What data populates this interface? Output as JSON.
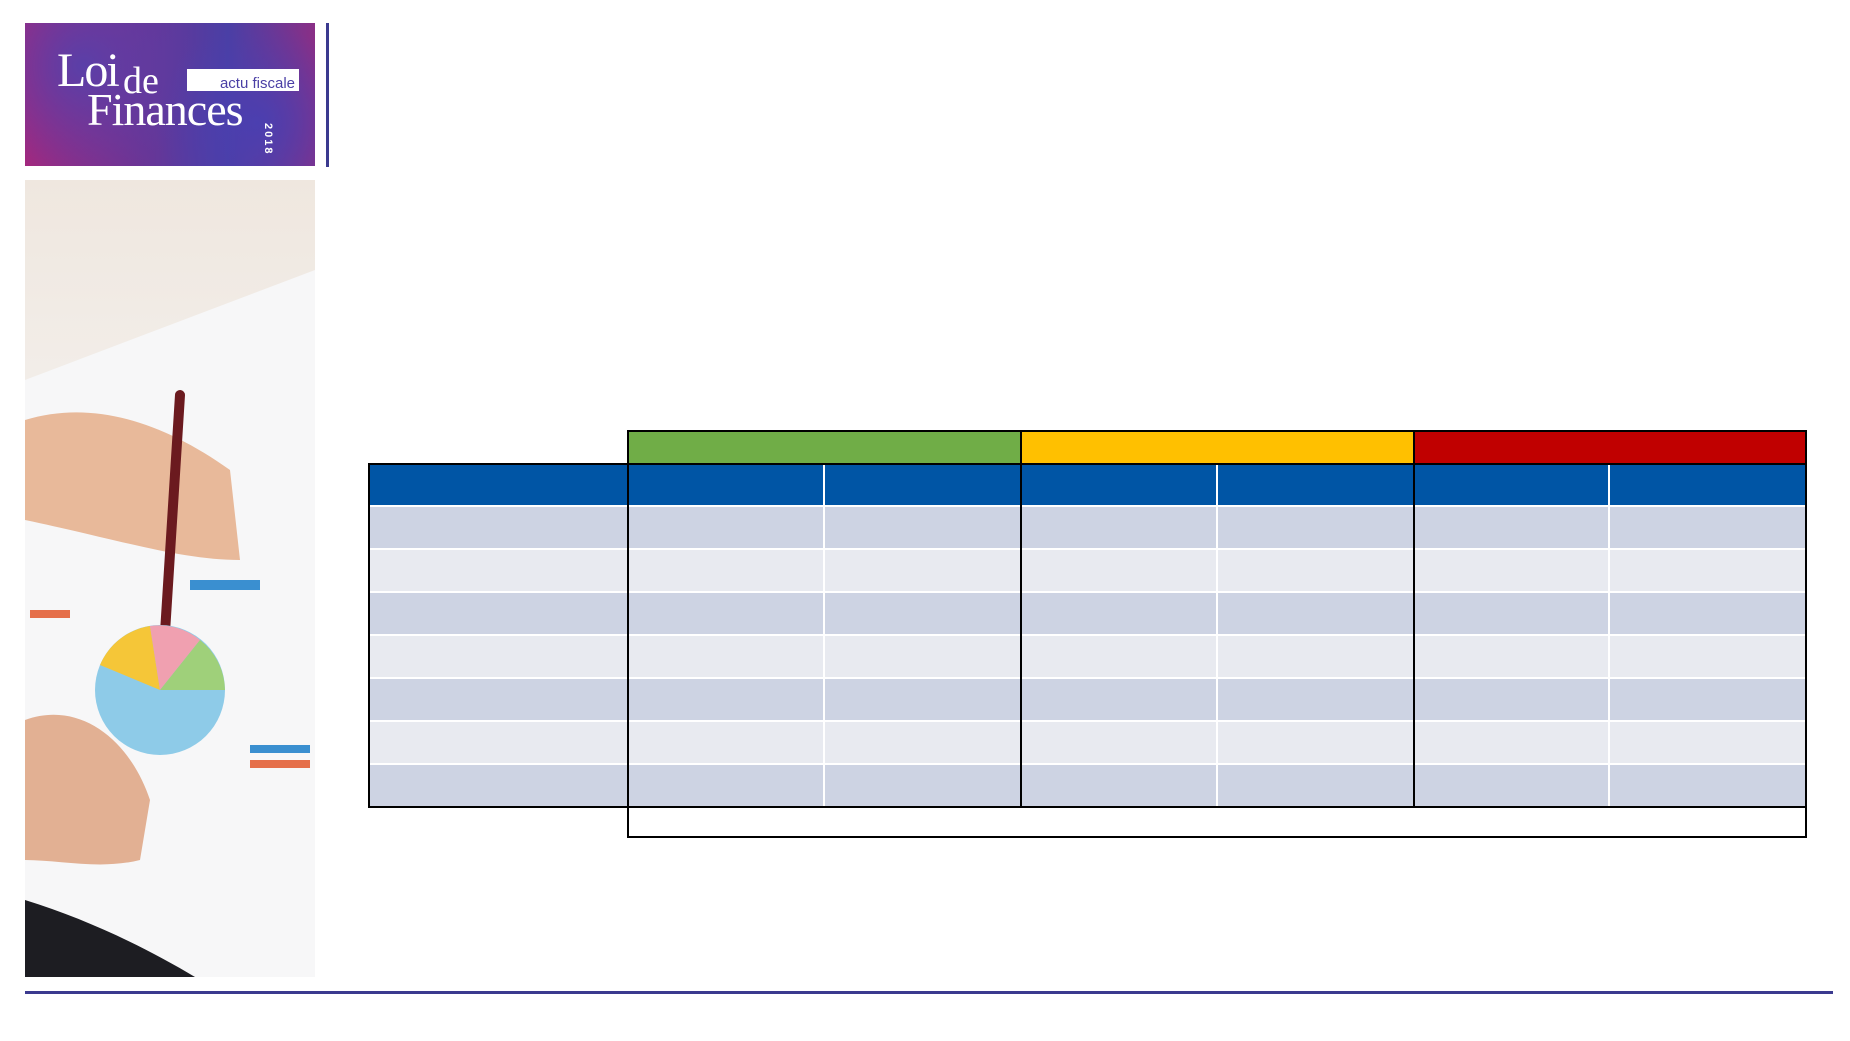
{
  "logo": {
    "word1": "Loi",
    "word2": "de",
    "word3": "Finances",
    "tagline": "actu fiscale",
    "year": "2018"
  }
}
